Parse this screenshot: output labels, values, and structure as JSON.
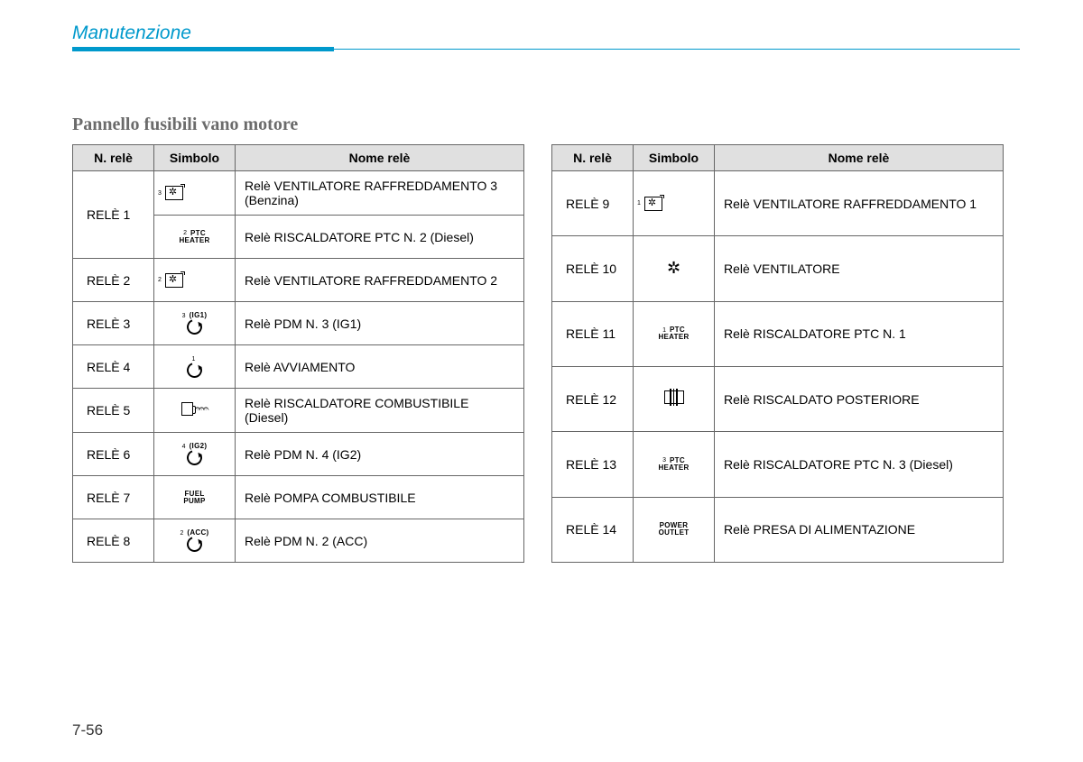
{
  "chapterTitle": "Manutenzione",
  "sectionTitle": "Pannello fusibili vano motore",
  "pageNumber": "7-56",
  "columns": {
    "relayNumber": "N. relè",
    "symbol": "Simbolo",
    "relayName": "Nome relè"
  },
  "table1": [
    {
      "num": "RELÈ 1",
      "sub": [
        {
          "symType": "fanbox",
          "sup": "3",
          "name": "Relè VENTILATORE RAFFREDDAMENTO 3 (Benzina)"
        },
        {
          "symType": "text2",
          "sup": "2",
          "line1": "PTC",
          "line2": "HEATER",
          "name": "Relè RISCALDATORE PTC N. 2 (Diesel)"
        }
      ]
    },
    {
      "num": "RELÈ 2",
      "symType": "fanbox",
      "sup": "2",
      "name": "Relè VENTILATORE RAFFREDDAMENTO 2"
    },
    {
      "num": "RELÈ 3",
      "symType": "arrow",
      "sup": "3",
      "label": "(IG1)",
      "name": "Relè PDM N. 3 (IG1)"
    },
    {
      "num": "RELÈ 4",
      "symType": "arrow",
      "sup": "1",
      "label": "",
      "name": "Relè AVVIAMENTO"
    },
    {
      "num": "RELÈ 5",
      "symType": "fuelheat",
      "name": "Relè RISCALDATORE COMBUSTIBILE (Diesel)"
    },
    {
      "num": "RELÈ 6",
      "symType": "arrow",
      "sup": "4",
      "label": "(IG2)",
      "name": "Relè PDM N. 4 (IG2)"
    },
    {
      "num": "RELÈ 7",
      "symType": "text2",
      "line1": "FUEL",
      "line2": "PUMP",
      "name": "Relè POMPA COMBUSTIBILE"
    },
    {
      "num": "RELÈ 8",
      "symType": "arrow",
      "sup": "2",
      "label": "(ACC)",
      "name": "Relè PDM N. 2 (ACC)"
    }
  ],
  "table2": [
    {
      "num": "RELÈ 9",
      "symType": "fanbox",
      "sup": "1",
      "name": "Relè VENTILATORE RAFFREDDAMENTO 1"
    },
    {
      "num": "RELÈ 10",
      "symType": "blower",
      "name": "Relè VENTILATORE"
    },
    {
      "num": "RELÈ 11",
      "symType": "text2",
      "sup": "1",
      "line1": "PTC",
      "line2": "HEATER",
      "name": "Relè RISCALDATORE PTC N. 1"
    },
    {
      "num": "RELÈ 12",
      "symType": "defrost",
      "name": "Relè RISCALDATO POSTERIORE"
    },
    {
      "num": "RELÈ 13",
      "symType": "text2",
      "sup": "3",
      "line1": "PTC",
      "line2": "HEATER",
      "name": "Relè RISCALDATORE PTC N. 3 (Diesel)"
    },
    {
      "num": "RELÈ 14",
      "symType": "text2",
      "line1": "POWER",
      "line2": "OUTLET",
      "name": "Relè PRESA DI ALIMENTAZIONE"
    }
  ]
}
